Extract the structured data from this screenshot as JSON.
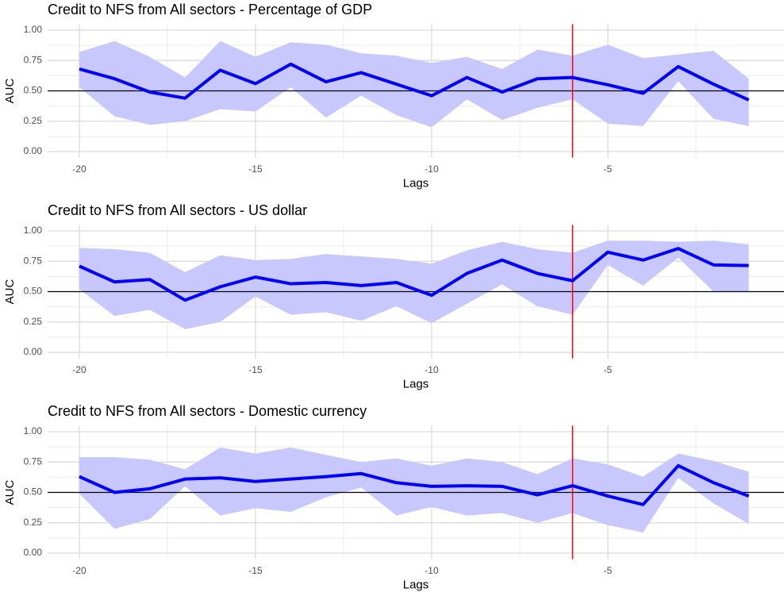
{
  "chart_data": [
    {
      "type": "line",
      "title": "Credit to NFS from All sectors - Percentage of GDP",
      "xlabel": "Lags",
      "ylabel": "AUC",
      "x": [
        -20,
        -19,
        -18,
        -17,
        -16,
        -15,
        -14,
        -13,
        -12,
        -11,
        -10,
        -9,
        -8,
        -7,
        -6,
        -5,
        -4,
        -3,
        -2,
        -1
      ],
      "values": [
        0.68,
        0.6,
        0.49,
        0.44,
        0.67,
        0.56,
        0.72,
        0.575,
        0.65,
        0.555,
        0.46,
        0.61,
        0.49,
        0.6,
        0.61,
        0.55,
        0.48,
        0.7,
        0.555,
        0.425
      ],
      "upper": [
        0.82,
        0.91,
        0.78,
        0.61,
        0.91,
        0.78,
        0.9,
        0.88,
        0.81,
        0.79,
        0.73,
        0.78,
        0.68,
        0.84,
        0.79,
        0.88,
        0.77,
        0.8,
        0.83,
        0.6
      ],
      "lower": [
        0.53,
        0.29,
        0.22,
        0.25,
        0.35,
        0.33,
        0.53,
        0.28,
        0.46,
        0.3,
        0.2,
        0.43,
        0.26,
        0.36,
        0.43,
        0.23,
        0.21,
        0.58,
        0.27,
        0.21
      ],
      "color": "#0000ff",
      "band_color": "#c8c8ff",
      "hline": 0.5,
      "hline_color": "#000000",
      "vline": -6,
      "vline_color": "#ff0000",
      "xlim": [
        -20.9,
        0
      ],
      "xticks": [
        -20,
        -15,
        -10,
        -5
      ],
      "ylim": [
        -0.05,
        1.05
      ],
      "yticks": [
        {
          "value": 0,
          "label": "0.00"
        },
        {
          "value": 0.25,
          "label": "0.25"
        },
        {
          "value": 0.5,
          "label": "0.50"
        },
        {
          "value": 0.75,
          "label": "0.75"
        },
        {
          "value": 1,
          "label": "1.00"
        }
      ],
      "grid": true
    },
    {
      "type": "line",
      "title": "Credit to NFS from All sectors - US dollar",
      "xlabel": "Lags",
      "ylabel": "AUC",
      "x": [
        -20,
        -19,
        -18,
        -17,
        -16,
        -15,
        -14,
        -13,
        -12,
        -11,
        -10,
        -9,
        -8,
        -7,
        -6,
        -5,
        -4,
        -3,
        -2,
        -1
      ],
      "values": [
        0.71,
        0.58,
        0.6,
        0.43,
        0.54,
        0.62,
        0.565,
        0.575,
        0.55,
        0.575,
        0.47,
        0.65,
        0.76,
        0.65,
        0.59,
        0.825,
        0.76,
        0.855,
        0.72,
        0.715
      ],
      "upper": [
        0.86,
        0.85,
        0.82,
        0.66,
        0.8,
        0.76,
        0.77,
        0.81,
        0.79,
        0.77,
        0.73,
        0.84,
        0.91,
        0.85,
        0.82,
        0.92,
        0.92,
        0.91,
        0.92,
        0.89
      ],
      "lower": [
        0.52,
        0.3,
        0.35,
        0.19,
        0.25,
        0.46,
        0.31,
        0.33,
        0.26,
        0.38,
        0.24,
        0.4,
        0.56,
        0.38,
        0.31,
        0.72,
        0.55,
        0.78,
        0.5,
        0.5
      ],
      "color": "#0000ff",
      "band_color": "#c8c8ff",
      "hline": 0.5,
      "hline_color": "#000000",
      "vline": -6,
      "vline_color": "#ff0000",
      "xlim": [
        -20.9,
        0
      ],
      "xticks": [
        -20,
        -15,
        -10,
        -5
      ],
      "ylim": [
        -0.05,
        1.05
      ],
      "yticks": [
        {
          "value": 0,
          "label": "0.00"
        },
        {
          "value": 0.25,
          "label": "0.25"
        },
        {
          "value": 0.5,
          "label": "0.50"
        },
        {
          "value": 0.75,
          "label": "0.75"
        },
        {
          "value": 1,
          "label": "1.00"
        }
      ],
      "grid": true
    },
    {
      "type": "line",
      "title": "Credit to NFS from All sectors - Domestic currency",
      "xlabel": "Lags",
      "ylabel": "AUC",
      "x": [
        -20,
        -19,
        -18,
        -17,
        -16,
        -15,
        -14,
        -13,
        -12,
        -11,
        -10,
        -9,
        -8,
        -7,
        -6,
        -5,
        -4,
        -3,
        -2,
        -1
      ],
      "values": [
        0.63,
        0.5,
        0.53,
        0.61,
        0.62,
        0.59,
        0.61,
        0.63,
        0.655,
        0.58,
        0.55,
        0.555,
        0.55,
        0.48,
        0.555,
        0.47,
        0.4,
        0.72,
        0.58,
        0.47
      ],
      "upper": [
        0.79,
        0.79,
        0.77,
        0.69,
        0.87,
        0.82,
        0.87,
        0.81,
        0.75,
        0.78,
        0.72,
        0.78,
        0.75,
        0.65,
        0.78,
        0.73,
        0.63,
        0.82,
        0.76,
        0.67
      ],
      "lower": [
        0.49,
        0.2,
        0.28,
        0.55,
        0.31,
        0.37,
        0.34,
        0.46,
        0.54,
        0.31,
        0.38,
        0.31,
        0.33,
        0.25,
        0.33,
        0.23,
        0.17,
        0.62,
        0.41,
        0.24
      ],
      "color": "#0000ff",
      "band_color": "#c8c8ff",
      "hline": 0.5,
      "hline_color": "#000000",
      "vline": -6,
      "vline_color": "#ff0000",
      "xlim": [
        -20.9,
        0
      ],
      "xticks": [
        -20,
        -15,
        -10,
        -5
      ],
      "ylim": [
        -0.05,
        1.05
      ],
      "yticks": [
        {
          "value": 0,
          "label": "0.00"
        },
        {
          "value": 0.25,
          "label": "0.25"
        },
        {
          "value": 0.5,
          "label": "0.50"
        },
        {
          "value": 0.75,
          "label": "0.75"
        },
        {
          "value": 1,
          "label": "1.00"
        }
      ],
      "grid": true
    }
  ]
}
